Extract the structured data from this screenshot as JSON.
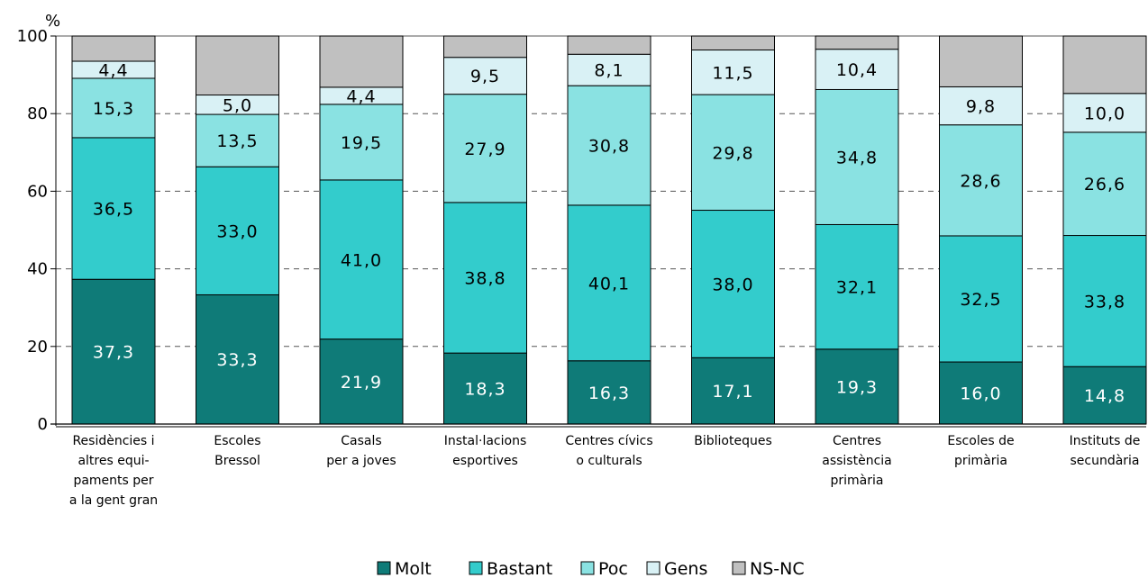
{
  "chart_data": {
    "type": "bar",
    "stacked": true,
    "percent": true,
    "ylabel": "%",
    "ylim": [
      0,
      100
    ],
    "yticks": [
      "0",
      "20",
      "40",
      "60",
      "80",
      "100"
    ],
    "grid": true,
    "legend_position": "bottom-center",
    "categories": [
      [
        "Residències i",
        "altres equi-",
        "paments per",
        "a la gent gran"
      ],
      [
        "Escoles",
        "Bressol"
      ],
      [
        "Casals",
        "per a joves"
      ],
      [
        "Instal·lacions",
        "esportives"
      ],
      [
        "Centres cívics",
        "o culturals"
      ],
      [
        "Biblioteques"
      ],
      [
        "Centres",
        "assistència",
        "primària"
      ],
      [
        "Escoles de",
        "primària"
      ],
      [
        "Instituts de",
        "secundària"
      ]
    ],
    "series": [
      {
        "name": "Molt",
        "color": "#0f7b78",
        "label_color": "#ffffff",
        "values": [
          37.3,
          33.3,
          21.9,
          18.3,
          16.3,
          17.1,
          19.3,
          16.0,
          14.8
        ],
        "labels": [
          "37,3",
          "33,3",
          "21,9",
          "18,3",
          "16,3",
          "17,1",
          "19,3",
          "16,0",
          "14,8"
        ]
      },
      {
        "name": "Bastant",
        "color": "#33cccc",
        "label_color": "#000000",
        "values": [
          36.5,
          33.0,
          41.0,
          38.8,
          40.1,
          38.0,
          32.1,
          32.5,
          33.8
        ],
        "labels": [
          "36,5",
          "33,0",
          "41,0",
          "38,8",
          "40,1",
          "38,0",
          "32,1",
          "32,5",
          "33,8"
        ]
      },
      {
        "name": "Poc",
        "color": "#8ae2e2",
        "label_color": "#000000",
        "values": [
          15.3,
          13.5,
          19.5,
          27.9,
          30.8,
          29.8,
          34.8,
          28.6,
          26.6
        ],
        "labels": [
          "15,3",
          "13,5",
          "19,5",
          "27,9",
          "30,8",
          "29,8",
          "34,8",
          "28,6",
          "26,6"
        ]
      },
      {
        "name": "Gens",
        "color": "#d9f1f5",
        "label_color": "#000000",
        "values": [
          4.4,
          5.0,
          4.4,
          9.5,
          8.1,
          11.5,
          10.4,
          9.8,
          10.0
        ],
        "labels": [
          "4,4",
          "5,0",
          "4,4",
          "9,5",
          "8,1",
          "11,5",
          "10,4",
          "9,8",
          "10,0"
        ]
      },
      {
        "name": "NS-NC",
        "color": "#c0c0c0",
        "label_color": "#000000",
        "values": [
          6.5,
          15.2,
          13.2,
          5.5,
          4.7,
          3.6,
          3.4,
          13.1,
          14.8
        ],
        "labels": []
      }
    ]
  }
}
